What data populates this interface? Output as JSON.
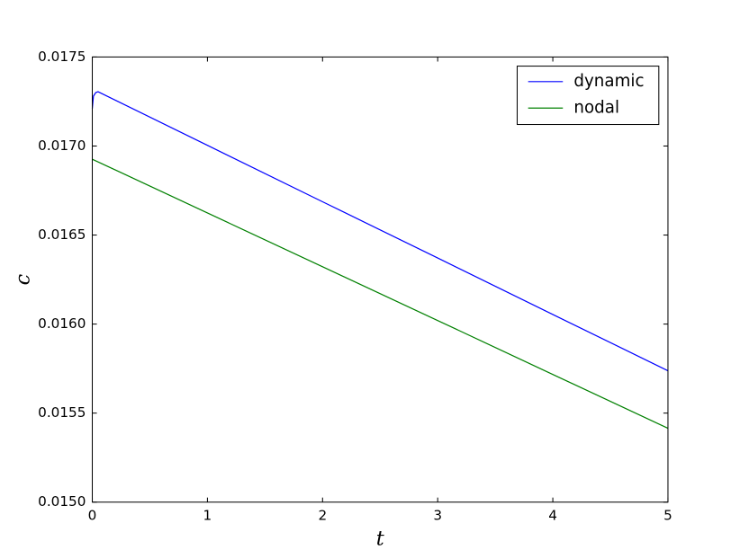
{
  "chart_data": {
    "type": "line",
    "xlabel": "t",
    "ylabel": "c",
    "xlim": [
      0,
      5
    ],
    "ylim": [
      0.015,
      0.0175
    ],
    "xticks": [
      0,
      1,
      2,
      3,
      4,
      5
    ],
    "yticks": [
      {
        "value": 0.015,
        "label": "0.0150"
      },
      0.0155,
      {
        "value": 0.016,
        "label": "0.0160"
      },
      0.0165,
      {
        "value": 0.017,
        "label": "0.0170"
      },
      0.0175
    ],
    "legend": "upper right",
    "series": [
      {
        "name": "dynamic",
        "color": "#0000ff",
        "x": [
          0,
          0.01,
          0.03,
          0.05,
          1,
          2,
          3,
          4,
          5
        ],
        "values": [
          0.01721,
          0.01728,
          0.0173,
          0.017305,
          0.017004,
          0.016687,
          0.016371,
          0.016054,
          0.015738
        ]
      },
      {
        "name": "nodal",
        "color": "#008000",
        "x": [
          0,
          1,
          2,
          3,
          4,
          5
        ],
        "values": [
          0.016926,
          0.016624,
          0.016322,
          0.01602,
          0.015717,
          0.015415
        ]
      }
    ]
  }
}
